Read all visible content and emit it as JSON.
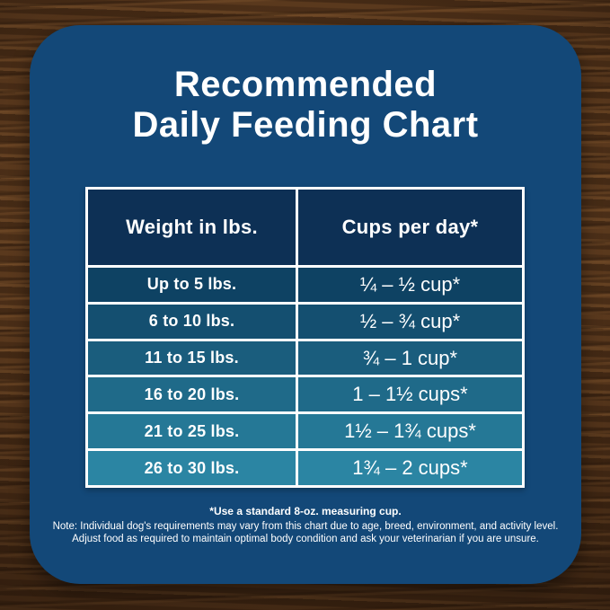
{
  "card": {
    "title_line1": "Recommended",
    "title_line2": "Daily Feeding Chart",
    "footnote": "*Use a standard 8-oz. measuring cup.",
    "note_line1": "Note: Individual dog's requirements may vary from this chart due to age, breed, environment, and activity level.",
    "note_line2": "Adjust food as required to maintain optimal body condition and ask your veterinarian if you are unsure."
  },
  "chart_data": {
    "type": "table",
    "title": "Recommended Daily Feeding Chart",
    "columns": [
      "Weight in lbs.",
      "Cups per day*"
    ],
    "rows": [
      [
        "Up to 5 lbs.",
        "¼ – ½ cup*"
      ],
      [
        "6 to 10 lbs.",
        "½ – ¾ cup*"
      ],
      [
        "11 to 15 lbs.",
        "¾ – 1 cup*"
      ],
      [
        "16 to 20 lbs.",
        "1 – 1½ cups*"
      ],
      [
        "21 to 25 lbs.",
        "1½ – 1¾ cups*"
      ],
      [
        "26 to 30 lbs.",
        "1¾ – 2 cups*"
      ]
    ],
    "row_colors": [
      "#0e4263",
      "#144f70",
      "#1a5d7d",
      "#1f6a89",
      "#257896",
      "#2b85a3"
    ]
  },
  "colors": {
    "card_background": "#134878",
    "table_header_background": "#0d3055",
    "table_border": "#ffffff",
    "text": "#ffffff",
    "wood_background": "#4e3019"
  }
}
